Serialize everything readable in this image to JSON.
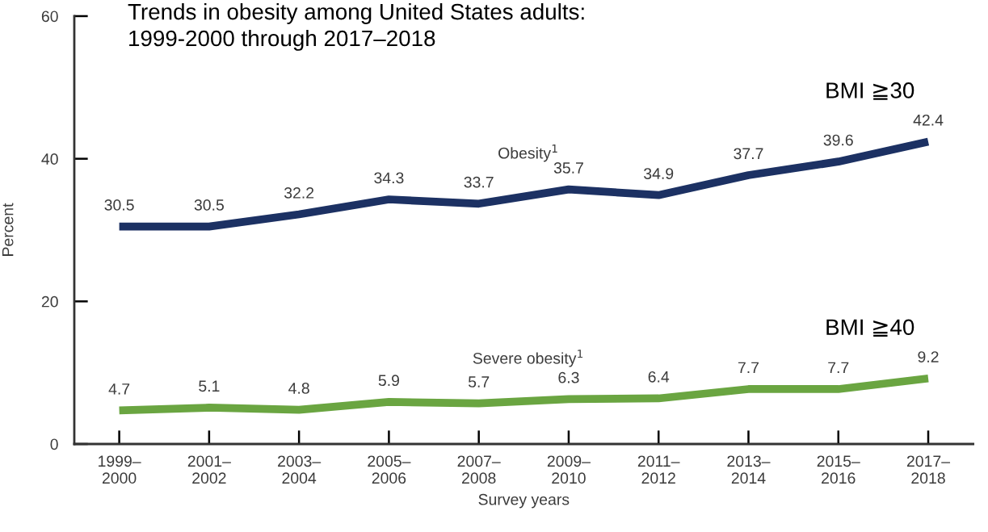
{
  "chart_data": {
    "type": "line",
    "title": "Trends in obesity among United States adults:\n1999-2000 through 2017–2018",
    "xlabel": "Survey years",
    "ylabel": "Percent",
    "categories": [
      "1999–\n2000",
      "2001–\n2002",
      "2003–\n2004",
      "2005–\n2006",
      "2007–\n2008",
      "2009–\n2010",
      "2011–\n2012",
      "2013–\n2014",
      "2015–\n2016",
      "2017–\n2018"
    ],
    "series": [
      {
        "name": "Obesity$^{1}$",
        "color": "#1c3163",
        "values": [
          30.5,
          30.5,
          32.2,
          34.3,
          33.7,
          35.7,
          34.9,
          37.7,
          39.6,
          42.4
        ]
      },
      {
        "name": "Severe obesity$^{1}$",
        "color": "#6aa541",
        "values": [
          4.7,
          5.1,
          4.8,
          5.9,
          5.7,
          6.3,
          6.4,
          7.7,
          7.7,
          9.2
        ]
      }
    ],
    "ylim": [
      0,
      60
    ],
    "yticks": [
      0,
      20,
      40,
      60
    ],
    "data_labels": true,
    "grid": false,
    "legend": false,
    "marker": "none",
    "line_style": "solid",
    "annotations": [
      "BMI ≧30",
      "BMI ≧40"
    ]
  }
}
